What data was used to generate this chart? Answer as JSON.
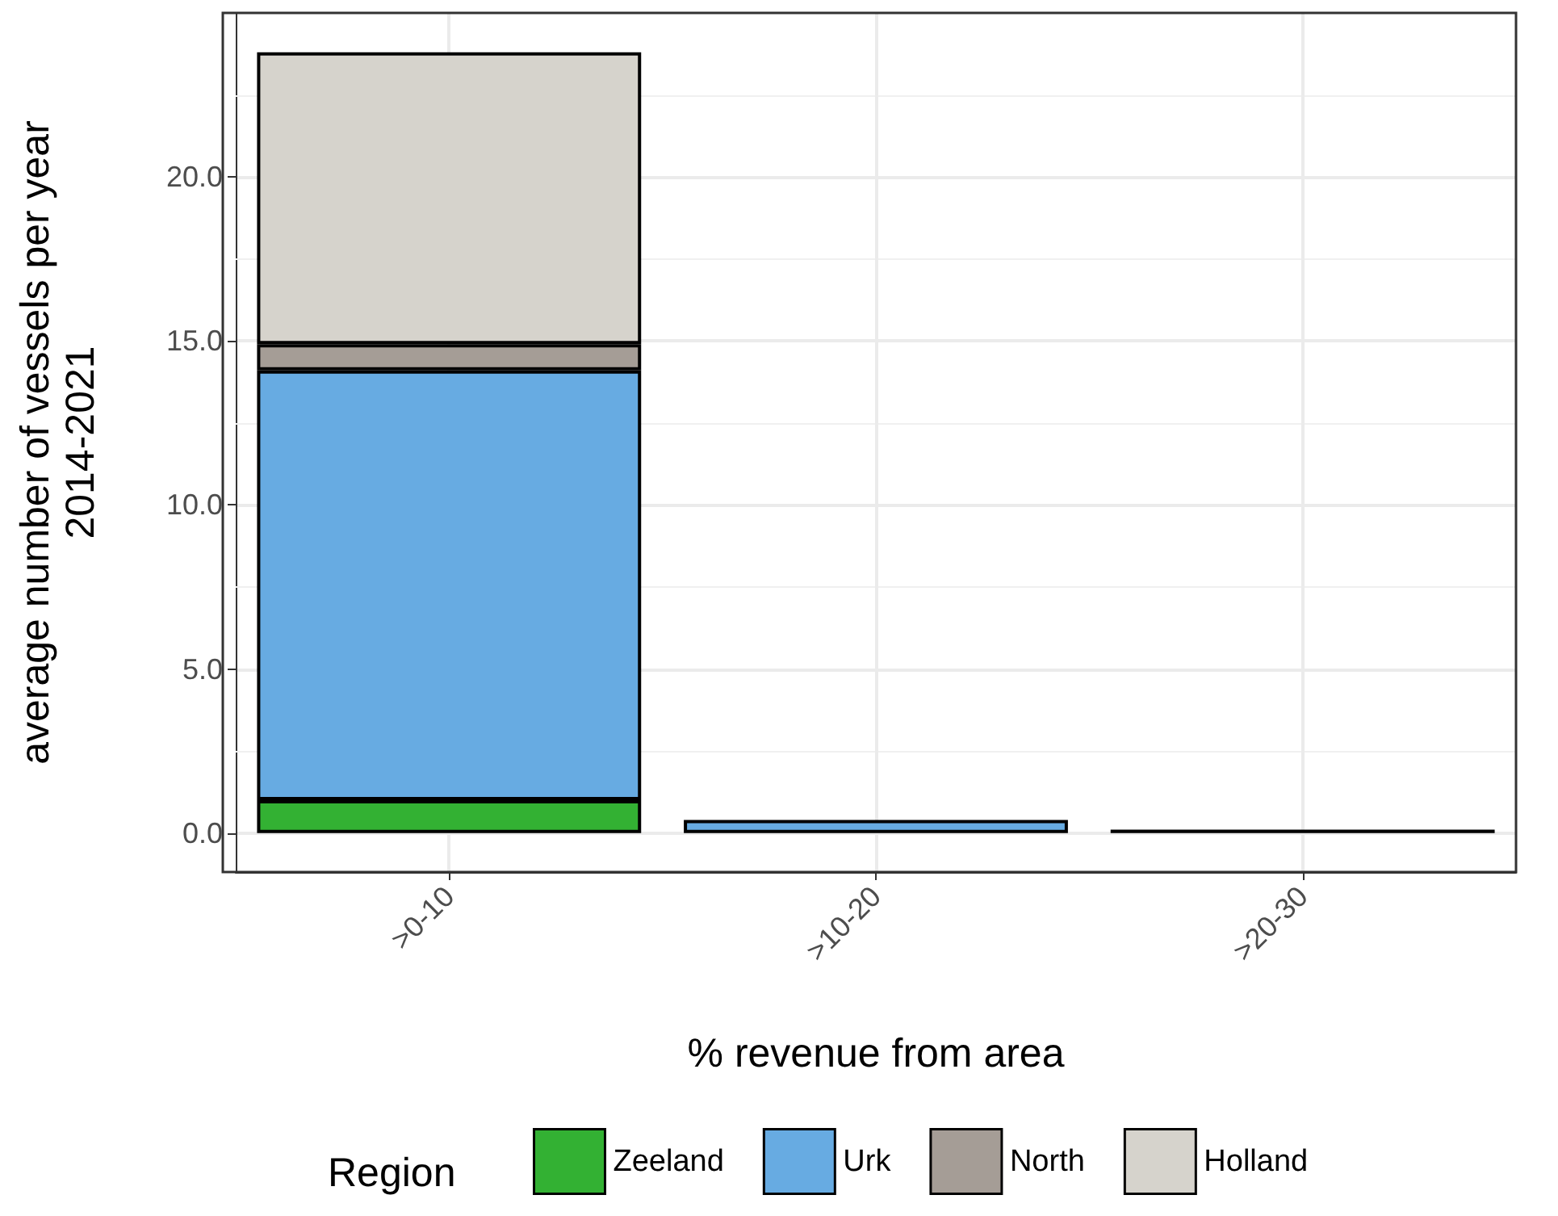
{
  "chart_data": {
    "type": "bar",
    "stacked": true,
    "xlabel": "% revenue from area",
    "ylabel": "average number of vessels per year\n2014-2021",
    "legend_title": "Region",
    "categories": [
      ">0-10",
      ">10-20",
      ">20-30"
    ],
    "series": [
      {
        "name": "Zeeland",
        "color": "#33b133",
        "values": [
          1.0,
          null,
          null
        ]
      },
      {
        "name": "Urk",
        "color": "#67abe2",
        "values": [
          13.1,
          0.4,
          0.1
        ]
      },
      {
        "name": "North",
        "color": "#a59d96",
        "values": [
          0.8,
          null,
          null
        ]
      },
      {
        "name": "Holland",
        "color": "#d6d3cc",
        "values": [
          8.9,
          null,
          null
        ]
      }
    ],
    "ylim": [
      -1.19,
      25.0
    ],
    "yticks": [
      {
        "value": 0,
        "label": "0.0"
      },
      {
        "value": 5,
        "label": "5.0"
      },
      {
        "value": 10,
        "label": "10.0"
      },
      {
        "value": 15,
        "label": "15.0"
      },
      {
        "value": 20,
        "label": "20.0"
      }
    ],
    "grid": true,
    "legend": "bottom"
  }
}
